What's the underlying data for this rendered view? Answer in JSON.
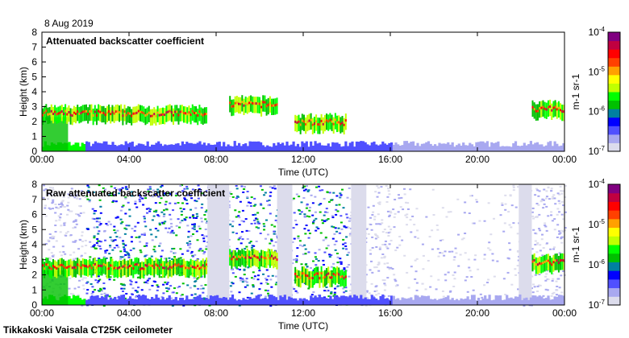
{
  "date_label": "8 Aug 2019",
  "footer": "Tikkakoski Vaisala CT25K ceilometer",
  "chart_data": [
    {
      "type": "heatmap",
      "title": "Attenuated backscatter coefficient",
      "xlabel": "Time (UTC)",
      "ylabel": "Height (km)",
      "xticks": [
        "00:00",
        "04:00",
        "08:00",
        "12:00",
        "16:00",
        "20:00",
        "00:00"
      ],
      "xlim": [
        0,
        24
      ],
      "yticks": [
        "0",
        "1",
        "2",
        "3",
        "4",
        "5",
        "6",
        "7",
        "8"
      ],
      "ylim": [
        0,
        8
      ],
      "colorbar": {
        "label": "m-1 sr-1",
        "ticks": [
          "10-7",
          "10-6",
          "10-5",
          "10-4"
        ],
        "range": [
          1e-07,
          0.0001
        ],
        "scale": "log"
      },
      "cloud_layers": [
        {
          "start": 0,
          "end": 7.6,
          "height_km": 2.5
        },
        {
          "start": 8.6,
          "end": 10.8,
          "height_km": 3.1
        },
        {
          "start": 11.6,
          "end": 14,
          "height_km": 1.9
        },
        {
          "start": 22.5,
          "end": 24,
          "height_km": 2.8
        }
      ],
      "noise": false
    },
    {
      "type": "heatmap",
      "title": "Raw attenuated backscatter coefficient",
      "xlabel": "Time (UTC)",
      "ylabel": "Height (km)",
      "xticks": [
        "00:00",
        "04:00",
        "08:00",
        "12:00",
        "16:00",
        "20:00",
        "00:00"
      ],
      "xlim": [
        0,
        24
      ],
      "yticks": [
        "0",
        "1",
        "2",
        "3",
        "4",
        "5",
        "6",
        "7",
        "8"
      ],
      "ylim": [
        0,
        8
      ],
      "colorbar": {
        "label": "m-1 sr-1",
        "ticks": [
          "10-7",
          "10-6",
          "10-5",
          "10-4"
        ],
        "range": [
          1e-07,
          0.0001
        ],
        "scale": "log"
      },
      "cloud_layers": [
        {
          "start": 0,
          "end": 7.6,
          "height_km": 2.5
        },
        {
          "start": 8.6,
          "end": 10.8,
          "height_km": 3.1
        },
        {
          "start": 11.6,
          "end": 14,
          "height_km": 1.9
        },
        {
          "start": 22.5,
          "end": 24,
          "height_km": 2.8
        }
      ],
      "noise": true
    }
  ],
  "colors": {
    "cmap": [
      "#dcdcec",
      "#a8a8f0",
      "#5050ff",
      "#0000ff",
      "#0080a0",
      "#00c000",
      "#00ff00",
      "#c0ff00",
      "#ffff00",
      "#ffa000",
      "#ff4000",
      "#ff0000",
      "#c00040",
      "#800080"
    ]
  }
}
